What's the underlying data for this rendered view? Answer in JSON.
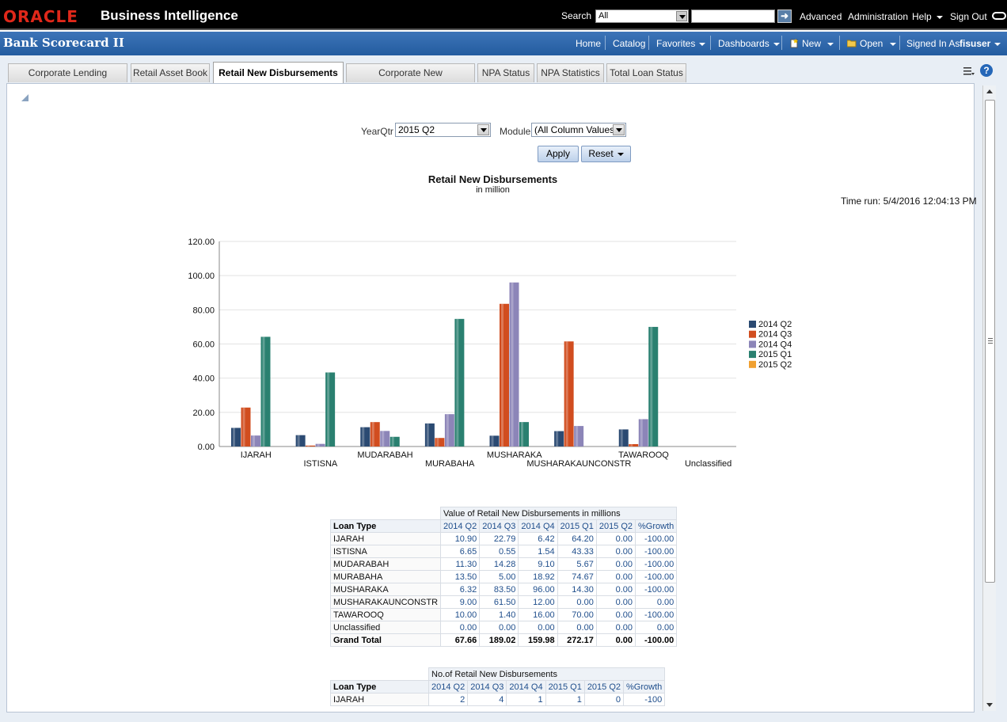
{
  "header": {
    "logo": "ORACLE",
    "product": "Business Intelligence",
    "search_label": "Search",
    "search_scope": "All",
    "links": [
      "Advanced",
      "Administration",
      "Help",
      "Sign Out"
    ]
  },
  "titlebar": {
    "title": "Bank Scorecard II",
    "nav": [
      "Home",
      "Catalog",
      "Favorites",
      "Dashboards",
      "New",
      "Open"
    ],
    "signed_in_label": "Signed In As",
    "user": "fisuser"
  },
  "tabs": [
    "Corporate Lending Statistics",
    "Retail Asset Book",
    "Retail New Disbursements",
    "Corporate New Disbursements",
    "NPA Status",
    "NPA Statistics",
    "Total Loan Status"
  ],
  "active_tab": "Retail New Disbursements",
  "prompts": {
    "yearqtr_label": "YearQtr",
    "yearqtr_value": "2015 Q2",
    "module_label": "Module",
    "module_value": "(All Column Values)",
    "apply_label": "Apply",
    "reset_label": "Reset"
  },
  "report": {
    "title": "Retail New Disbursements",
    "subtitle": "in million",
    "time_run": "Time run: 5/4/2016 12:04:13 PM"
  },
  "chart_data": {
    "type": "bar",
    "title": "Retail New Disbursements",
    "subtitle": "in million",
    "categories": [
      "IJARAH",
      "ISTISNA",
      "MUDARABAH",
      "MURABAHA",
      "MUSHARAKA",
      "MUSHARAKAUNCONSTR",
      "TAWAROOQ",
      "Unclassified"
    ],
    "series": [
      {
        "name": "2014 Q2",
        "color": "#2b4a72",
        "values": [
          10.9,
          6.65,
          11.3,
          13.5,
          6.32,
          9.0,
          10.0,
          0.0
        ]
      },
      {
        "name": "2014 Q3",
        "color": "#d14d1f",
        "values": [
          22.79,
          0.55,
          14.28,
          5.0,
          83.5,
          61.5,
          1.4,
          0.0
        ]
      },
      {
        "name": "2014 Q4",
        "color": "#8c85b8",
        "values": [
          6.42,
          1.54,
          9.1,
          18.92,
          96.0,
          12.0,
          16.0,
          0.0
        ]
      },
      {
        "name": "2015 Q1",
        "color": "#2a8070",
        "values": [
          64.2,
          43.33,
          5.67,
          74.67,
          14.3,
          0.0,
          70.0,
          0.0
        ]
      },
      {
        "name": "2015 Q2",
        "color": "#f0a030",
        "values": [
          0.0,
          0.0,
          0.0,
          0.0,
          0.0,
          0.0,
          0.0,
          0.0
        ]
      }
    ],
    "y_ticks": [
      "0.00",
      "20.00",
      "40.00",
      "60.00",
      "80.00",
      "100.00",
      "120.00"
    ],
    "ylim": [
      0,
      120
    ],
    "grid": true,
    "legend": "right"
  },
  "table1": {
    "caption": "Value of Retail New Disbursements in millions",
    "row_header": "Loan Type",
    "columns": [
      "2014 Q2",
      "2014 Q3",
      "2014 Q4",
      "2015 Q1",
      "2015 Q2",
      "%Growth"
    ],
    "rows": [
      [
        "IJARAH",
        "10.90",
        "22.79",
        "6.42",
        "64.20",
        "0.00",
        "-100.00"
      ],
      [
        "ISTISNA",
        "6.65",
        "0.55",
        "1.54",
        "43.33",
        "0.00",
        "-100.00"
      ],
      [
        "MUDARABAH",
        "11.30",
        "14.28",
        "9.10",
        "5.67",
        "0.00",
        "-100.00"
      ],
      [
        "MURABAHA",
        "13.50",
        "5.00",
        "18.92",
        "74.67",
        "0.00",
        "-100.00"
      ],
      [
        "MUSHARAKA",
        "6.32",
        "83.50",
        "96.00",
        "14.30",
        "0.00",
        "-100.00"
      ],
      [
        "MUSHARAKAUNCONSTR",
        "9.00",
        "61.50",
        "12.00",
        "0.00",
        "0.00",
        "0.00"
      ],
      [
        "TAWAROOQ",
        "10.00",
        "1.40",
        "16.00",
        "70.00",
        "0.00",
        "-100.00"
      ],
      [
        "Unclassified",
        "0.00",
        "0.00",
        "0.00",
        "0.00",
        "0.00",
        "0.00"
      ]
    ],
    "total": [
      "Grand Total",
      "67.66",
      "189.02",
      "159.98",
      "272.17",
      "0.00",
      "-100.00"
    ]
  },
  "table2": {
    "caption": "No.of Retail New Disbursements",
    "row_header": "Loan Type",
    "columns": [
      "2014 Q2",
      "2014 Q3",
      "2014 Q4",
      "2015 Q1",
      "2015 Q2",
      "%Growth"
    ],
    "rows": [
      [
        "IJARAH",
        "2",
        "4",
        "1",
        "1",
        "0",
        "-100"
      ]
    ]
  }
}
